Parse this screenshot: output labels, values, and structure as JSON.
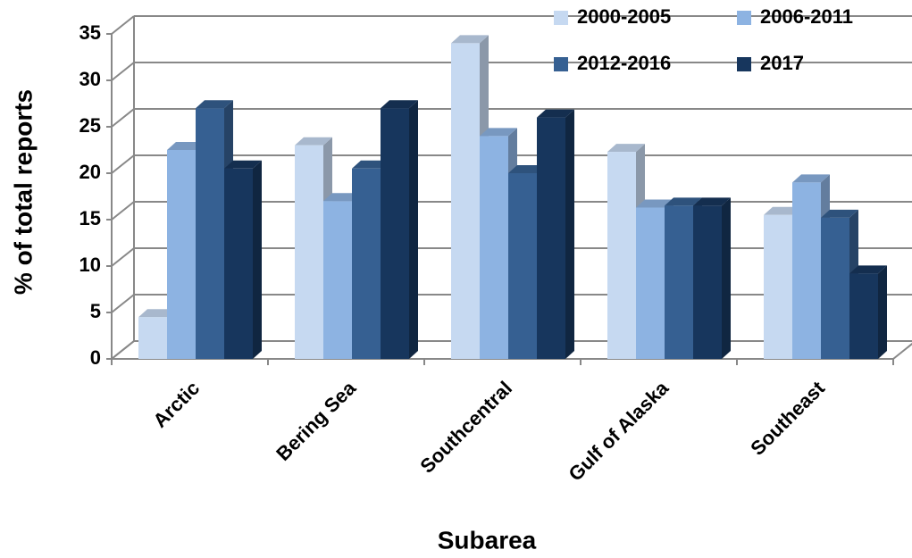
{
  "chart_data": {
    "type": "bar3d",
    "x_label": "Subarea",
    "y_label": "% of total reports",
    "categories": [
      "Arctic",
      "Bering Sea",
      "Southcentral",
      "Gulf of Alaska",
      "Southeast"
    ],
    "series": [
      {
        "name": "2000-2005",
        "color": "#c6d9f1",
        "values": [
          4.5,
          23,
          34,
          22.3,
          15.5
        ]
      },
      {
        "name": "2006-2011",
        "color": "#8db3e2",
        "values": [
          22.5,
          17,
          24,
          16.3,
          19
        ]
      },
      {
        "name": "2012-2016",
        "color": "#366092",
        "values": [
          27,
          20.5,
          20,
          16.5,
          15.2
        ]
      },
      {
        "name": "2017",
        "color": "#17365d",
        "values": [
          20.5,
          27,
          26,
          16.5,
          9.2
        ]
      }
    ],
    "ylim": [
      0,
      35
    ],
    "yticks": [
      0,
      5,
      10,
      15,
      20,
      25,
      30,
      35
    ],
    "grid": true
  }
}
